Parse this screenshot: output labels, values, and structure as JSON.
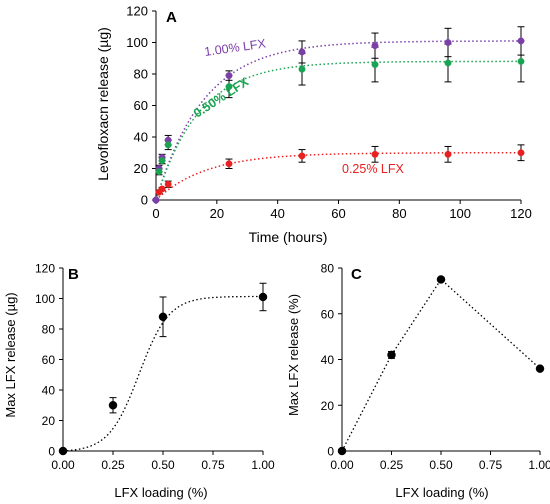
{
  "chart_data": [
    {
      "type": "scatter",
      "panel_label": "A",
      "xlabel": "Time (hours)",
      "ylabel": "Levofloxacn release (µg)",
      "xlim": [
        0,
        120
      ],
      "ylim": [
        0,
        120
      ],
      "xticks": [
        0,
        20,
        40,
        60,
        80,
        100,
        120
      ],
      "yticks": [
        0,
        20,
        40,
        60,
        80,
        100,
        120
      ],
      "grid": false,
      "series": [
        {
          "name": "1.00% LFX",
          "color": "#7b3fa8",
          "marker": "circle",
          "x": [
            0,
            1,
            2,
            4,
            24,
            48,
            72,
            96,
            120
          ],
          "y": [
            0,
            20,
            27,
            38,
            79,
            94,
            98,
            100,
            101
          ],
          "err": [
            0,
            2,
            2,
            3,
            3,
            7,
            8,
            9,
            9
          ],
          "fit": "dotted"
        },
        {
          "name": "0.50% LFX",
          "color": "#1aa352",
          "marker": "circle",
          "x": [
            0,
            1,
            2,
            4,
            24,
            48,
            72,
            96,
            120
          ],
          "y": [
            0,
            18,
            25,
            35,
            72,
            83,
            86,
            87,
            88
          ],
          "err": [
            0,
            2,
            2,
            3,
            7,
            10,
            11,
            12,
            13
          ],
          "fit": "dotted"
        },
        {
          "name": "0.25% LFX",
          "color": "#e82020",
          "marker": "circle",
          "x": [
            0,
            1,
            2,
            4,
            24,
            48,
            72,
            96,
            120
          ],
          "y": [
            0,
            5,
            7,
            10,
            23,
            28,
            29,
            29,
            30
          ],
          "err": [
            0,
            1,
            1,
            2,
            3,
            4,
            5,
            5,
            5
          ],
          "fit": "dotted"
        }
      ],
      "first_point_color": "#7b3fa8"
    },
    {
      "type": "scatter",
      "panel_label": "B",
      "xlabel": "LFX loading (%)",
      "ylabel": "Max LFX release (µg)",
      "xlim": [
        0,
        1
      ],
      "ylim": [
        0,
        120
      ],
      "xticks": [
        "0.00",
        "0.25",
        "0.50",
        "0.75",
        "1.00"
      ],
      "yticks": [
        0,
        20,
        40,
        60,
        80,
        100,
        120
      ],
      "grid": false,
      "series": [
        {
          "color": "#000000",
          "marker": "circle",
          "x": [
            0,
            0.25,
            0.5,
            1.0
          ],
          "y": [
            0,
            30,
            88,
            101
          ],
          "err": [
            0,
            5,
            13,
            9
          ],
          "fit": "dotted-smooth"
        }
      ]
    },
    {
      "type": "line",
      "panel_label": "C",
      "xlabel": "LFX loading (%)",
      "ylabel": "Max LFX release (%)",
      "xlim": [
        0,
        1
      ],
      "ylim": [
        0,
        80
      ],
      "xticks": [
        "0.00",
        "0.25",
        "0.50",
        "0.75",
        "1.00"
      ],
      "yticks": [
        0,
        20,
        40,
        60,
        80
      ],
      "grid": false,
      "series": [
        {
          "color": "#000000",
          "marker": "circle",
          "x": [
            0,
            0.25,
            0.5,
            1.0
          ],
          "y": [
            0,
            42,
            75,
            36
          ],
          "err": [
            0,
            1.5,
            0.8,
            0.5
          ],
          "line": "dotted"
        }
      ]
    }
  ]
}
